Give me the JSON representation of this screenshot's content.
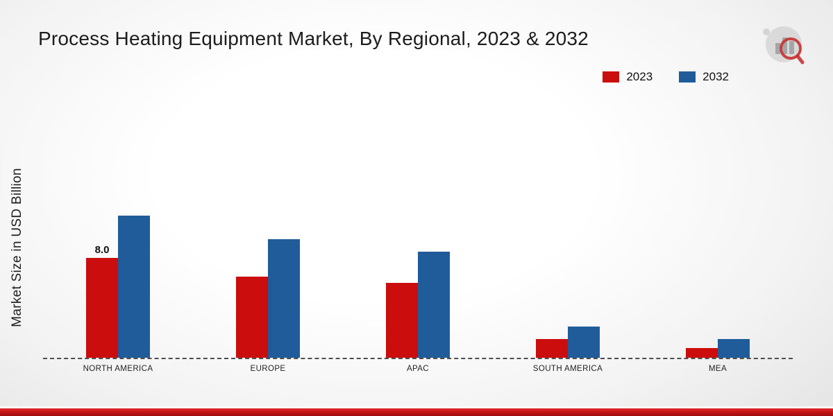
{
  "header": {
    "title": "Process Heating Equipment Market, By Regional, 2023 & 2032"
  },
  "chart_data": {
    "type": "bar",
    "title": "Process Heating Equipment Market, By Regional, 2023 & 2032",
    "xlabel": "",
    "ylabel": "Market Size in USD Billion",
    "categories": [
      "NORTH AMERICA",
      "EUROPE",
      "APAC",
      "SOUTH AMERICA",
      "MEA"
    ],
    "series": [
      {
        "name": "2023",
        "color": "#cc0d0d",
        "values": [
          8.0,
          6.5,
          6.0,
          1.5,
          0.8
        ],
        "labels": [
          "8.0",
          "",
          "",
          "",
          ""
        ]
      },
      {
        "name": "2032",
        "color": "#1f5c99",
        "values": [
          11.4,
          9.5,
          8.5,
          2.5,
          1.5
        ],
        "labels": [
          "",
          "",
          "",
          "",
          ""
        ]
      }
    ],
    "ylim": [
      0,
      12
    ],
    "grid": false,
    "baseline_style": "dashed",
    "legend_position": "top-right"
  },
  "colors": {
    "series_2023": "#cc0d0d",
    "series_2032": "#1f5c99",
    "footer_band": "#c01113"
  }
}
